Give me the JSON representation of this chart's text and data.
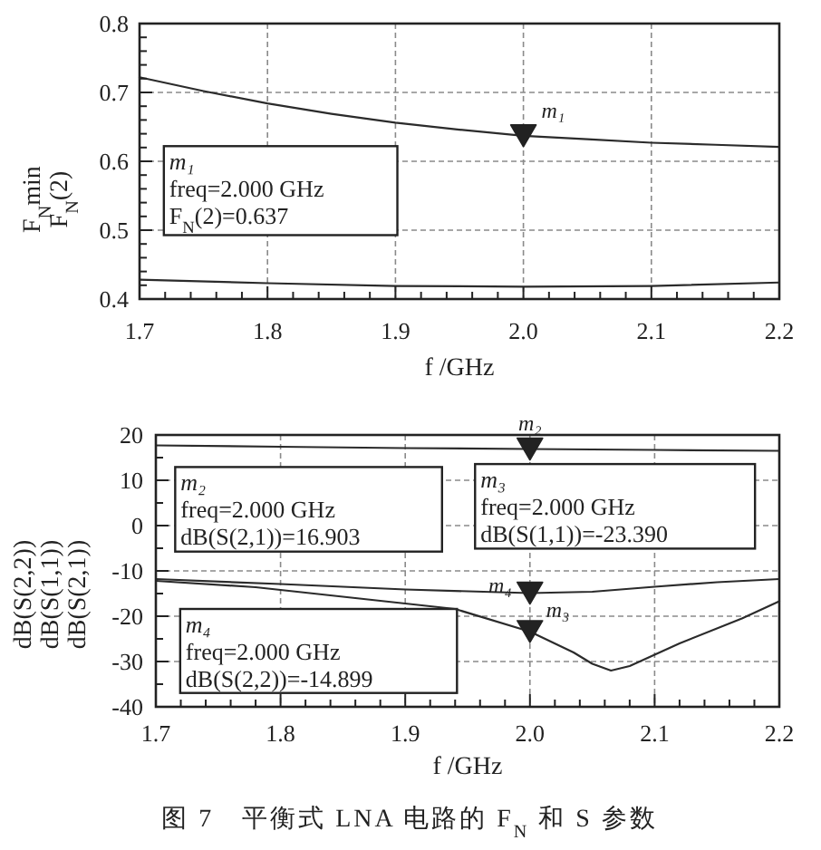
{
  "chart_data": [
    {
      "type": "line",
      "xlabel": "f /GHz",
      "ylabel": "F$_{N}$min\nF$_{N}$(2)",
      "xlim": [
        1.7,
        2.2
      ],
      "ylim": [
        0.4,
        0.8
      ],
      "xticks": [
        1.7,
        {
          "value": 1.72,
          "label": null
        },
        {
          "value": 1.74,
          "label": null
        },
        {
          "value": 1.76,
          "label": null
        },
        {
          "value": 1.78,
          "label": null
        },
        1.8,
        {
          "value": 1.82,
          "label": null
        },
        {
          "value": 1.84,
          "label": null
        },
        {
          "value": 1.86,
          "label": null
        },
        {
          "value": 1.88,
          "label": null
        },
        1.9,
        {
          "value": 1.92,
          "label": null
        },
        {
          "value": 1.94,
          "label": null
        },
        {
          "value": 1.96,
          "label": null
        },
        {
          "value": 1.98,
          "label": null
        },
        {
          "value": 2,
          "label": "2.0"
        },
        {
          "value": 2.02,
          "label": null
        },
        {
          "value": 2.04,
          "label": null
        },
        {
          "value": 2.06,
          "label": null
        },
        {
          "value": 2.08,
          "label": null
        },
        2.1,
        {
          "value": 2.12,
          "label": null
        },
        {
          "value": 2.14,
          "label": null
        },
        {
          "value": 2.16,
          "label": null
        },
        {
          "value": 2.18,
          "label": null
        },
        2.2
      ],
      "yticks": [
        0.4,
        {
          "value": 0.42,
          "label": null
        },
        {
          "value": 0.44,
          "label": null
        },
        {
          "value": 0.46,
          "label": null
        },
        {
          "value": 0.48,
          "label": null
        },
        0.5,
        {
          "value": 0.52,
          "label": null
        },
        {
          "value": 0.54,
          "label": null
        },
        {
          "value": 0.56,
          "label": null
        },
        {
          "value": 0.58,
          "label": null
        },
        0.6,
        {
          "value": 0.62,
          "label": null
        },
        {
          "value": 0.64,
          "label": null
        },
        {
          "value": 0.66,
          "label": null
        },
        {
          "value": 0.68,
          "label": null
        },
        0.7,
        {
          "value": 0.72,
          "label": null
        },
        {
          "value": 0.74,
          "label": null
        },
        {
          "value": 0.76,
          "label": null
        },
        {
          "value": 0.78,
          "label": null
        },
        0.8
      ],
      "grid": true,
      "series": [
        {
          "color": "#2b2b2b",
          "x": [
            1.7,
            1.75,
            1.8,
            1.85,
            1.9,
            1.95,
            2.0,
            2.05,
            2.1,
            2.15,
            2.2
          ],
          "values": [
            0.722,
            0.702,
            0.684,
            0.669,
            0.656,
            0.646,
            0.637,
            0.632,
            0.627,
            0.624,
            0.621
          ]
        },
        {
          "color": "#2b2b2b",
          "x": [
            1.7,
            1.8,
            1.9,
            2.0,
            2.1,
            2.2
          ],
          "values": [
            0.428,
            0.423,
            0.419,
            0.418,
            0.419,
            0.424
          ]
        },
        {
          "type": "scatter",
          "marker": "triangle",
          "color": "#222222",
          "x": [
            2.0
          ],
          "values": [
            0.637
          ]
        }
      ],
      "annotations": [
        "m₁",
        "m₁\nfreq=2.000 GHz\nF$_{N}$(2)=0.637"
      ]
    },
    {
      "type": "line",
      "xlabel": "f /GHz",
      "ylabel": "dB(S(2,2))\ndB(S(1,1))\ndB(S(2,1))",
      "xlim": [
        1.7,
        2.2
      ],
      "ylim": [
        -40,
        20
      ],
      "xticks": [
        1.7,
        {
          "value": 1.72,
          "label": null
        },
        {
          "value": 1.74,
          "label": null
        },
        {
          "value": 1.76,
          "label": null
        },
        {
          "value": 1.78,
          "label": null
        },
        1.8,
        {
          "value": 1.82,
          "label": null
        },
        {
          "value": 1.84,
          "label": null
        },
        {
          "value": 1.86,
          "label": null
        },
        {
          "value": 1.88,
          "label": null
        },
        1.9,
        {
          "value": 1.92,
          "label": null
        },
        {
          "value": 1.94,
          "label": null
        },
        {
          "value": 1.96,
          "label": null
        },
        {
          "value": 1.98,
          "label": null
        },
        {
          "value": 2,
          "label": "2.0"
        },
        {
          "value": 2.02,
          "label": null
        },
        {
          "value": 2.04,
          "label": null
        },
        {
          "value": 2.06,
          "label": null
        },
        {
          "value": 2.08,
          "label": null
        },
        2.1,
        {
          "value": 2.12,
          "label": null
        },
        {
          "value": 2.14,
          "label": null
        },
        {
          "value": 2.16,
          "label": null
        },
        {
          "value": 2.18,
          "label": null
        },
        2.2
      ],
      "yticks": [
        -40,
        {
          "value": -35,
          "label": null
        },
        -30,
        {
          "value": -25,
          "label": null
        },
        -20,
        {
          "value": -15,
          "label": null
        },
        -10,
        {
          "value": -5,
          "label": null
        },
        0,
        {
          "value": 5,
          "label": null
        },
        10,
        {
          "value": 15,
          "label": null
        },
        20
      ],
      "grid": true,
      "series": [
        {
          "color": "#2b2b2b",
          "x": [
            1.7,
            1.8,
            1.9,
            2.0,
            2.1,
            2.2
          ],
          "values": [
            17.7,
            17.4,
            17.1,
            16.903,
            16.7,
            16.5
          ]
        },
        {
          "color": "#2b2b2b",
          "x": [
            1.7,
            1.8,
            1.9,
            2.0,
            2.05,
            2.1,
            2.15,
            2.2
          ],
          "values": [
            -11.8,
            -12.9,
            -14.1,
            -14.899,
            -14.6,
            -13.5,
            -12.5,
            -11.8
          ]
        },
        {
          "color": "#2b2b2b",
          "x": [
            1.7,
            1.78,
            1.85,
            1.94,
            2.0,
            2.035,
            2.05,
            2.065,
            2.08,
            2.12,
            2.17,
            2.2
          ],
          "values": [
            -12.2,
            -13.6,
            -15.7,
            -18.4,
            -23.39,
            -28,
            -30.5,
            -32,
            -31,
            -26,
            -20.5,
            -16.7
          ]
        },
        {
          "type": "scatter",
          "marker": "triangle",
          "color": "#222222",
          "x": [
            2.0,
            2.0,
            2.0
          ],
          "values": [
            16.903,
            -23.39,
            -14.899
          ]
        }
      ],
      "annotations": [
        "m₂",
        "m₃",
        "m₄",
        "m₂\nfreq=2.000 GHz\ndB(S(2,1))=16.903",
        "m₃\nfreq=2.000 GHz\ndB(S(1,1))=-23.390",
        "m₄\nfreq=2.000 GHz\ndB(S(2,2))=-14.899",
        "图 7　平衡式 LNA 电路的 F$_{N}$ 和 S 参数"
      ]
    }
  ]
}
